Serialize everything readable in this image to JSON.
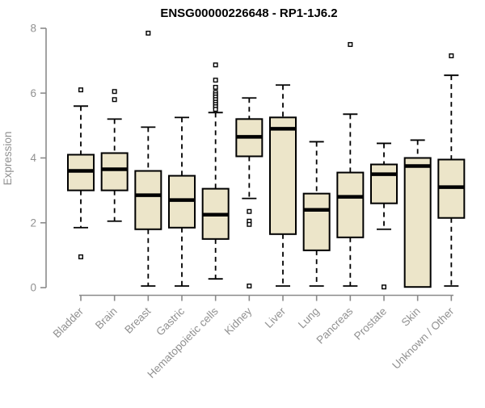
{
  "title": "ENSG00000226648 - RP1-1J6.2",
  "chart_data": {
    "type": "boxplot",
    "title": "ENSG00000226648 - RP1-1J6.2",
    "xlabel": "",
    "ylabel": "Expression",
    "ylim": [
      0,
      8
    ],
    "yticks": [
      0,
      2,
      4,
      6,
      8
    ],
    "grid": false,
    "legend": "none",
    "categories": [
      "Bladder",
      "Brain",
      "Breast",
      "Gastric",
      "Hematopoietic cells",
      "Kidney",
      "Liver",
      "Lung",
      "Pancreas",
      "Prostate",
      "Skin",
      "Unknown / Other"
    ],
    "series": [
      {
        "name": "Bladder",
        "whisker_low": 1.85,
        "q1": 3.0,
        "median": 3.6,
        "q3": 4.1,
        "whisker_high": 5.6,
        "outliers": [
          6.1,
          0.95
        ]
      },
      {
        "name": "Brain",
        "whisker_low": 2.05,
        "q1": 3.0,
        "median": 3.65,
        "q3": 4.15,
        "whisker_high": 5.2,
        "outliers": [
          6.05,
          5.8
        ]
      },
      {
        "name": "Breast",
        "whisker_low": 0.05,
        "q1": 1.8,
        "median": 2.85,
        "q3": 3.6,
        "whisker_high": 4.95,
        "outliers": [
          7.85
        ]
      },
      {
        "name": "Gastric",
        "whisker_low": 0.05,
        "q1": 1.85,
        "median": 2.7,
        "q3": 3.45,
        "whisker_high": 5.25,
        "outliers": []
      },
      {
        "name": "Hematopoietic cells",
        "whisker_low": 0.27,
        "q1": 1.5,
        "median": 2.25,
        "q3": 3.05,
        "whisker_high": 5.4,
        "outliers": [
          6.87,
          6.4,
          6.18,
          6.02,
          5.95,
          5.88,
          5.8,
          5.72,
          5.65,
          5.58,
          5.5
        ]
      },
      {
        "name": "Kidney",
        "whisker_low": 2.75,
        "q1": 4.05,
        "median": 4.65,
        "q3": 5.2,
        "whisker_high": 5.85,
        "outliers": [
          2.35,
          2.05,
          1.95,
          0.05
        ]
      },
      {
        "name": "Liver",
        "whisker_low": 0.05,
        "q1": 1.65,
        "median": 4.9,
        "q3": 5.25,
        "whisker_high": 6.25,
        "outliers": []
      },
      {
        "name": "Lung",
        "whisker_low": 0.05,
        "q1": 1.15,
        "median": 2.4,
        "q3": 2.9,
        "whisker_high": 4.5,
        "outliers": []
      },
      {
        "name": "Pancreas",
        "whisker_low": 0.05,
        "q1": 1.55,
        "median": 2.8,
        "q3": 3.55,
        "whisker_high": 5.35,
        "outliers": [
          7.5
        ]
      },
      {
        "name": "Prostate",
        "whisker_low": 1.8,
        "q1": 2.6,
        "median": 3.5,
        "q3": 3.8,
        "whisker_high": 4.45,
        "outliers": [
          0.02
        ]
      },
      {
        "name": "Skin",
        "whisker_low": 0.02,
        "q1": 0.02,
        "median": 3.75,
        "q3": 4.0,
        "whisker_high": 4.55,
        "outliers": []
      },
      {
        "name": "Unknown / Other",
        "whisker_low": 0.05,
        "q1": 2.15,
        "median": 3.1,
        "q3": 3.95,
        "whisker_high": 6.55,
        "outliers": [
          7.15
        ]
      }
    ],
    "colors": {
      "box_fill": "#ECE5C9",
      "box_border": "#000000",
      "median": "#000000",
      "whisker": "#000000",
      "outlier": "#000000",
      "axis_line": "#8a8a8a",
      "tick_label": "#919191",
      "title": "#000000"
    }
  }
}
